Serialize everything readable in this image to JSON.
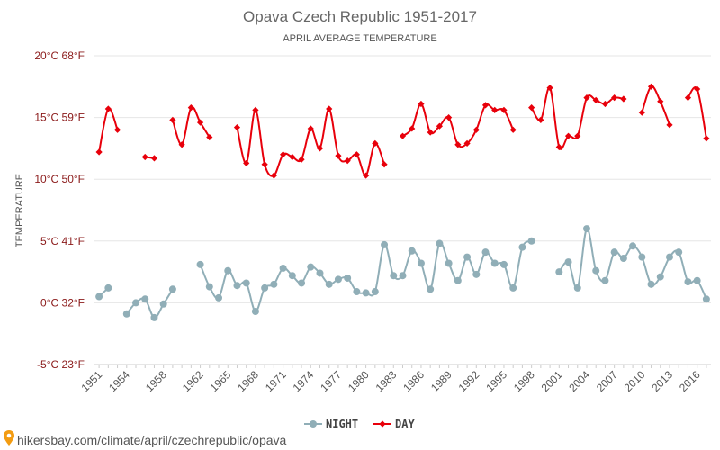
{
  "chart_data": {
    "type": "line",
    "title": "Opava Czech Republic 1951-2017",
    "subtitle": "APRIL AVERAGE TEMPERATURE",
    "ylabel": "TEMPERATURE",
    "ylim": [
      -5,
      20
    ],
    "yticks": [
      {
        "value": 20,
        "label": "20°C 68°F"
      },
      {
        "value": 15,
        "label": "15°C 59°F"
      },
      {
        "value": 10,
        "label": "10°C 50°F"
      },
      {
        "value": 5,
        "label": "5°C 41°F"
      },
      {
        "value": 0,
        "label": "0°C 32°F"
      },
      {
        "value": -5,
        "label": "-5°C 23°F"
      }
    ],
    "xlim": [
      1950.5,
      2017.5
    ],
    "xticks": [
      1951,
      1954,
      1958,
      1962,
      1965,
      1968,
      1971,
      1974,
      1977,
      1980,
      1983,
      1986,
      1989,
      1992,
      1995,
      1998,
      2001,
      2004,
      2007,
      2010,
      2013,
      2016
    ],
    "x": [
      1951,
      1952,
      1953,
      1954,
      1955,
      1956,
      1957,
      1958,
      1959,
      1960,
      1961,
      1962,
      1963,
      1964,
      1965,
      1966,
      1967,
      1968,
      1969,
      1970,
      1971,
      1972,
      1973,
      1974,
      1975,
      1976,
      1977,
      1978,
      1979,
      1980,
      1981,
      1982,
      1983,
      1984,
      1985,
      1986,
      1987,
      1988,
      1989,
      1990,
      1991,
      1992,
      1993,
      1994,
      1995,
      1996,
      1997,
      1998,
      1999,
      2000,
      2001,
      2002,
      2003,
      2004,
      2005,
      2006,
      2007,
      2008,
      2009,
      2010,
      2011,
      2012,
      2013,
      2014,
      2015,
      2016,
      2017
    ],
    "series": [
      {
        "name": "DAY",
        "color": "#e8000b",
        "marker": "diamond",
        "values": [
          12.2,
          15.7,
          14.0,
          null,
          null,
          11.8,
          11.7,
          null,
          14.8,
          12.8,
          15.8,
          14.6,
          13.4,
          null,
          null,
          14.2,
          11.3,
          15.6,
          11.2,
          10.3,
          12.0,
          11.8,
          11.6,
          14.1,
          12.5,
          15.7,
          11.9,
          11.5,
          12.0,
          10.3,
          12.9,
          11.2,
          null,
          13.5,
          14.1,
          16.1,
          13.8,
          14.3,
          15.0,
          12.8,
          12.9,
          14.0,
          16.0,
          15.6,
          15.6,
          14.0,
          null,
          15.8,
          14.8,
          17.4,
          12.6,
          13.5,
          13.5,
          16.6,
          16.4,
          16.1,
          16.6,
          16.5,
          null,
          15.4,
          17.5,
          16.3,
          14.4,
          null,
          16.6,
          17.3,
          13.3
        ]
      },
      {
        "name": "NIGHT",
        "color": "#90aeb7",
        "marker": "circle",
        "values": [
          0.5,
          1.2,
          null,
          -0.9,
          0.0,
          0.3,
          -1.2,
          -0.1,
          1.1,
          null,
          null,
          3.1,
          1.3,
          0.4,
          2.6,
          1.4,
          1.6,
          -0.7,
          1.2,
          1.5,
          2.8,
          2.2,
          1.6,
          2.9,
          2.4,
          1.5,
          1.9,
          2.0,
          0.9,
          0.8,
          0.9,
          4.7,
          2.2,
          2.2,
          4.2,
          3.2,
          1.1,
          4.8,
          3.2,
          1.8,
          3.7,
          2.3,
          4.1,
          3.2,
          3.1,
          1.2,
          4.5,
          5.0,
          null,
          null,
          2.5,
          3.3,
          1.2,
          6.0,
          2.6,
          1.8,
          4.1,
          3.6,
          4.6,
          3.7,
          1.5,
          2.1,
          3.7,
          4.1,
          1.7,
          1.8,
          0.3
        ]
      }
    ],
    "legend": {
      "placement": "bottom-center",
      "items": [
        "NIGHT",
        "DAY"
      ]
    },
    "grid": true
  },
  "footer": {
    "text": "hikersbay.com/climate/april/czechrepublic/opava",
    "icon": "map-pin-icon"
  }
}
